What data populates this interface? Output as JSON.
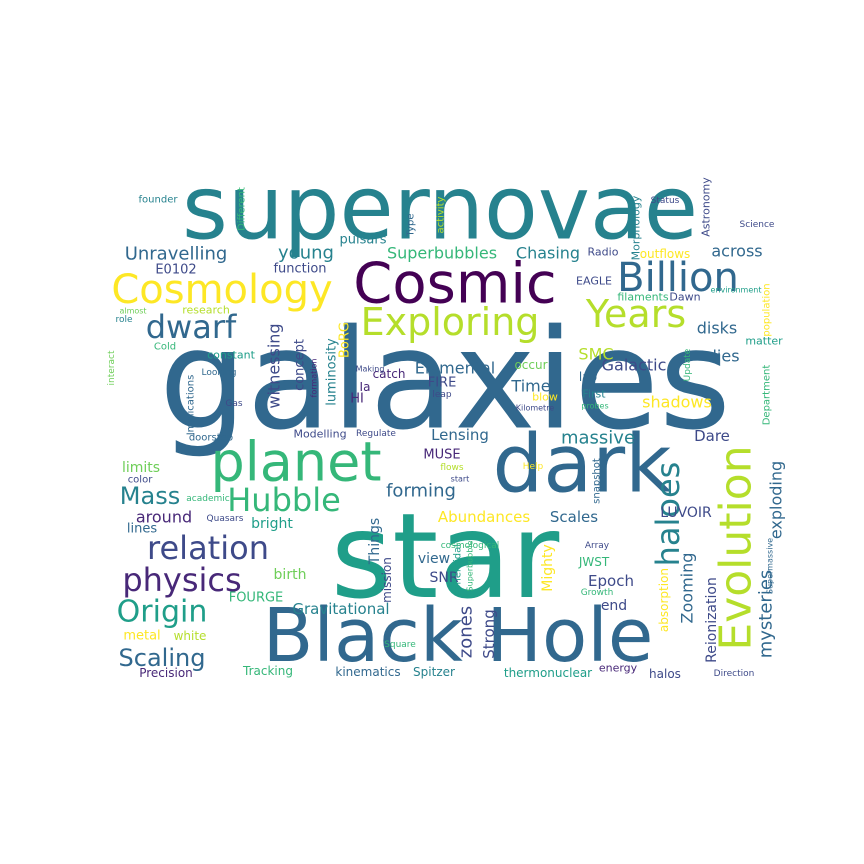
{
  "word_cloud": {
    "palette": {
      "p0": "#440154",
      "p1": "#482878",
      "p2": "#3e4a89",
      "p3": "#31688e",
      "p4": "#26828e",
      "p5": "#1f9e89",
      "p6": "#35b779",
      "p7": "#6ece58",
      "p8": "#b5de2b",
      "p9": "#fde725"
    },
    "words": [
      {
        "text": "galaxies",
        "color": "p3"
      },
      {
        "text": "star",
        "color": "p5"
      },
      {
        "text": "supernovae",
        "color": "p4"
      },
      {
        "text": "Black Hole",
        "color": "p3"
      },
      {
        "text": "dark",
        "color": "p3"
      },
      {
        "text": "Cosmic",
        "color": "p0"
      },
      {
        "text": "planet",
        "color": "p6"
      },
      {
        "text": "Evolution",
        "color": "p8"
      },
      {
        "text": "Cosmology",
        "color": "p9"
      },
      {
        "text": "Billion",
        "color": "p3"
      },
      {
        "text": "Exploring",
        "color": "p8"
      },
      {
        "text": "Years",
        "color": "p8"
      },
      {
        "text": "dwarf",
        "color": "p3"
      },
      {
        "text": "Hubble",
        "color": "p6"
      },
      {
        "text": "relation",
        "color": "p2"
      },
      {
        "text": "physics",
        "color": "p1"
      },
      {
        "text": "haloes",
        "color": "p4"
      },
      {
        "text": "Origin",
        "color": "p5"
      },
      {
        "text": "Mass",
        "color": "p4"
      },
      {
        "text": "Scaling",
        "color": "p3"
      },
      {
        "text": "Unravelling",
        "color": "p3"
      },
      {
        "text": "young",
        "color": "p4"
      },
      {
        "text": "Superbubbles",
        "color": "p6"
      },
      {
        "text": "Chasing",
        "color": "p4"
      },
      {
        "text": "across",
        "color": "p3"
      },
      {
        "text": "E0102",
        "color": "p2"
      },
      {
        "text": "function",
        "color": "p2"
      },
      {
        "text": "pulsars",
        "color": "p4"
      },
      {
        "text": "Radio",
        "color": "p2"
      },
      {
        "text": "outflows",
        "color": "p9"
      },
      {
        "text": "EAGLE",
        "color": "p2"
      },
      {
        "text": "filaments",
        "color": "p6"
      },
      {
        "text": "Dawn",
        "color": "p2"
      },
      {
        "text": "disks",
        "color": "p3"
      },
      {
        "text": "lies",
        "color": "p3"
      },
      {
        "text": "Galactic",
        "color": "p2"
      },
      {
        "text": "Elemental",
        "color": "p3"
      },
      {
        "text": "SMC",
        "color": "p8"
      },
      {
        "text": "matter",
        "color": "p5"
      },
      {
        "text": "witnessing",
        "color": "p2"
      },
      {
        "text": "concept",
        "color": "p2"
      },
      {
        "text": "luminosity",
        "color": "p4"
      },
      {
        "text": "BoRG",
        "color": "p9"
      },
      {
        "text": "catch",
        "color": "p1"
      },
      {
        "text": "Ia",
        "color": "p1"
      },
      {
        "text": "HI",
        "color": "p1"
      },
      {
        "text": "FIRE",
        "color": "p2"
      },
      {
        "text": "Time",
        "color": "p3"
      },
      {
        "text": "occur",
        "color": "p7"
      },
      {
        "text": "blow",
        "color": "p9"
      },
      {
        "text": "lab",
        "color": "p3"
      },
      {
        "text": "First",
        "color": "p4"
      },
      {
        "text": "shadows",
        "color": "p9"
      },
      {
        "text": "Lensing",
        "color": "p3"
      },
      {
        "text": "massive",
        "color": "p4"
      },
      {
        "text": "Dare",
        "color": "p2"
      },
      {
        "text": "exploding",
        "color": "p3"
      },
      {
        "text": "MUSE",
        "color": "p1"
      },
      {
        "text": "limits",
        "color": "p7"
      },
      {
        "text": "forming",
        "color": "p3"
      },
      {
        "text": "around",
        "color": "p1"
      },
      {
        "text": "Abundances",
        "color": "p9"
      },
      {
        "text": "Scales",
        "color": "p3"
      },
      {
        "text": "LUVOIR",
        "color": "p2"
      },
      {
        "text": "bright",
        "color": "p5"
      },
      {
        "text": "lines",
        "color": "p3"
      },
      {
        "text": "Things",
        "color": "p3"
      },
      {
        "text": "view",
        "color": "p3"
      },
      {
        "text": "SNR",
        "color": "p2"
      },
      {
        "text": "birth",
        "color": "p7"
      },
      {
        "text": "Mighty",
        "color": "p9"
      },
      {
        "text": "JWST",
        "color": "p6"
      },
      {
        "text": "Epoch",
        "color": "p2"
      },
      {
        "text": "Zooming",
        "color": "p3"
      },
      {
        "text": "mysteries",
        "color": "p3"
      },
      {
        "text": "Reionization",
        "color": "p2"
      },
      {
        "text": "FOURGE",
        "color": "p6"
      },
      {
        "text": "Gravitational",
        "color": "p4"
      },
      {
        "text": "end",
        "color": "p2"
      },
      {
        "text": "metal",
        "color": "p9"
      },
      {
        "text": "white",
        "color": "p8"
      },
      {
        "text": "zones",
        "color": "p2"
      },
      {
        "text": "Strong",
        "color": "p2"
      },
      {
        "text": "Tracking",
        "color": "p6"
      },
      {
        "text": "Precision",
        "color": "p1"
      },
      {
        "text": "kinematics",
        "color": "p3"
      },
      {
        "text": "Spitzer",
        "color": "p4"
      },
      {
        "text": "thermonuclear",
        "color": "p5"
      },
      {
        "text": "energy",
        "color": "p1"
      },
      {
        "text": "halos",
        "color": "p2"
      },
      {
        "text": "Direction",
        "color": "p2"
      },
      {
        "text": "Square",
        "color": "p6"
      },
      {
        "text": "spheroidal",
        "color": "p5"
      },
      {
        "text": "absorption",
        "color": "p9"
      },
      {
        "text": "Growth",
        "color": "p6"
      },
      {
        "text": "Supermassive",
        "color": "p3"
      },
      {
        "text": "Array",
        "color": "p2"
      },
      {
        "text": "cosmological",
        "color": "p6"
      },
      {
        "text": "Quasars",
        "color": "p2"
      },
      {
        "text": "academic",
        "color": "p6"
      },
      {
        "text": "color",
        "color": "p2"
      },
      {
        "text": "doorstep",
        "color": "p3"
      },
      {
        "text": "Modelling",
        "color": "p2"
      },
      {
        "text": "Regulate",
        "color": "p2"
      },
      {
        "text": "Help",
        "color": "p9"
      },
      {
        "text": "flows",
        "color": "p8"
      },
      {
        "text": "start",
        "color": "p2"
      },
      {
        "text": "snapshot",
        "color": "p3"
      },
      {
        "text": "Type",
        "color": "p3"
      },
      {
        "text": "activity",
        "color": "p8"
      },
      {
        "text": "mission",
        "color": "p2"
      },
      {
        "text": "founder",
        "color": "p4"
      },
      {
        "text": "Different",
        "color": "p6"
      },
      {
        "text": "Status",
        "color": "p2"
      },
      {
        "text": "Science",
        "color": "p2"
      },
      {
        "text": "Astronomy",
        "color": "p2"
      },
      {
        "text": "Morphology",
        "color": "p4"
      },
      {
        "text": "environment",
        "color": "p5"
      },
      {
        "text": "population",
        "color": "p9"
      },
      {
        "text": "Department",
        "color": "p6"
      },
      {
        "text": "Update",
        "color": "p6"
      },
      {
        "text": "almost",
        "color": "p7"
      },
      {
        "text": "research",
        "color": "p8"
      },
      {
        "text": "role",
        "color": "p4"
      },
      {
        "text": "interact",
        "color": "p7"
      },
      {
        "text": "Cold",
        "color": "p6"
      },
      {
        "text": "constant",
        "color": "p5"
      },
      {
        "text": "Looking",
        "color": "p3"
      },
      {
        "text": "Making",
        "color": "p2"
      },
      {
        "text": "formation",
        "color": "p1"
      },
      {
        "text": "Implications",
        "color": "p3"
      },
      {
        "text": "Gas",
        "color": "p2"
      },
      {
        "text": "leap",
        "color": "p2"
      },
      {
        "text": "probes",
        "color": "p6"
      },
      {
        "text": "Kilometre",
        "color": "p2"
      },
      {
        "text": "Superbubble",
        "color": "p6"
      }
    ]
  }
}
